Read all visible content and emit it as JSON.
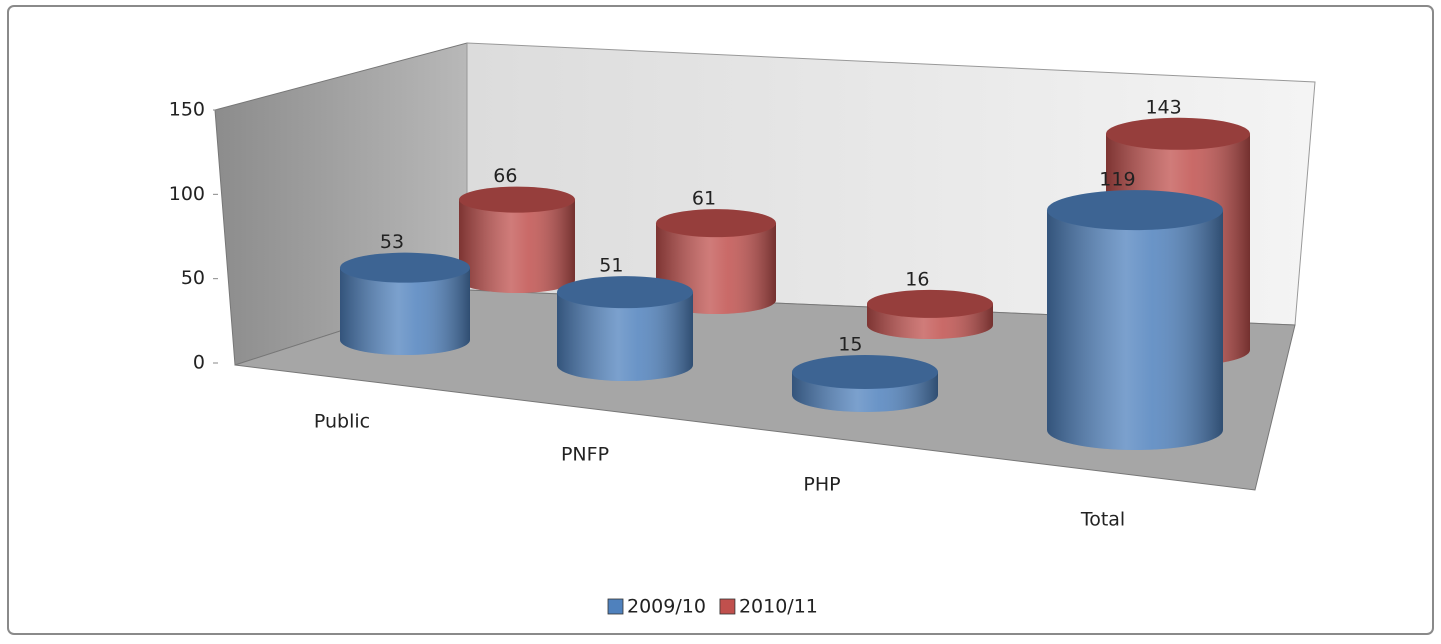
{
  "chart_data": {
    "type": "bar3d-cylinder",
    "categories": [
      "Public",
      "PNFP",
      "PHP",
      "Total"
    ],
    "series": [
      {
        "name": "2009/10",
        "color": "#4f81bd",
        "values": [
          53,
          51,
          15,
          119
        ]
      },
      {
        "name": "2010/11",
        "color": "#c0504d",
        "values": [
          66,
          61,
          16,
          143
        ]
      }
    ],
    "ylim": [
      0,
      150
    ],
    "yticks": [
      0,
      50,
      100,
      150
    ],
    "legend": "bottom"
  }
}
